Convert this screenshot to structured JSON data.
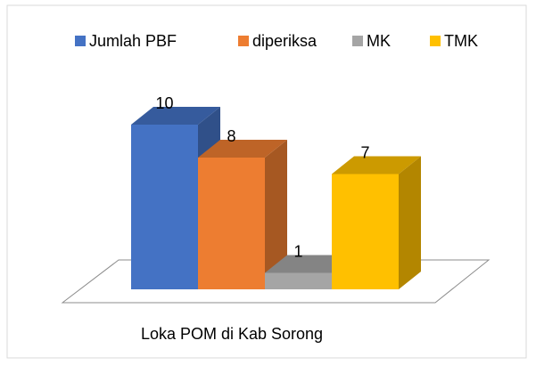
{
  "chart_data": {
    "type": "bar3d",
    "categories": [
      "Loka POM di Kab Sorong"
    ],
    "series": [
      {
        "name": "Jumlah PBF",
        "color": "#4472c4",
        "values": [
          10
        ]
      },
      {
        "name": "diperiksa",
        "color": "#ed7d31",
        "values": [
          8
        ]
      },
      {
        "name": "MK",
        "color": "#a5a5a5",
        "values": [
          1
        ]
      },
      {
        "name": "TMK",
        "color": "#ffc000",
        "values": [
          7
        ]
      }
    ],
    "legend": "top"
  }
}
